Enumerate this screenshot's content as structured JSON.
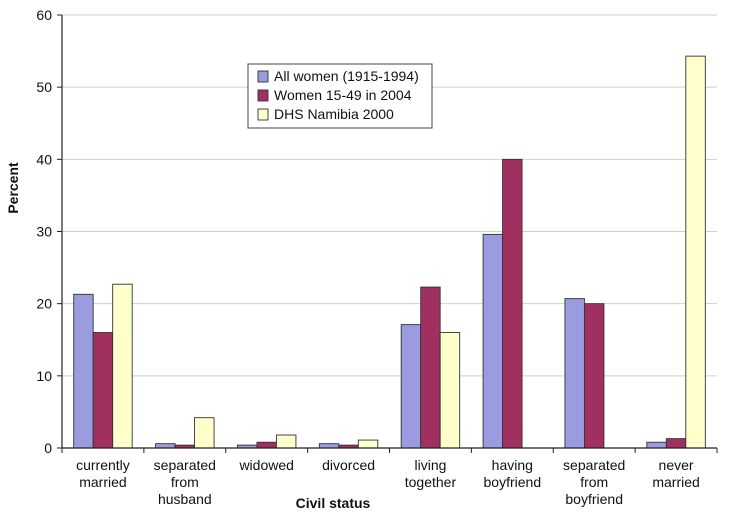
{
  "chart_data": {
    "type": "bar",
    "xlabel": "Civil status",
    "ylabel": "Percent",
    "ylim": [
      0,
      60
    ],
    "yticks": [
      0,
      10,
      20,
      30,
      40,
      50,
      60
    ],
    "grid": true,
    "legend_position": "top-center",
    "categories": [
      [
        "currently",
        "married"
      ],
      [
        "separated",
        "from",
        "husband"
      ],
      [
        "widowed"
      ],
      [
        "divorced"
      ],
      [
        "living",
        "together"
      ],
      [
        "having",
        "boyfriend"
      ],
      [
        "separated",
        "from",
        "boyfriend"
      ],
      [
        "never",
        "married"
      ]
    ],
    "series": [
      {
        "name": "All women (1915-1994)",
        "color": "#9b9be0",
        "values": [
          21.3,
          0.6,
          0.4,
          0.6,
          17.1,
          29.6,
          20.7,
          0.8
        ]
      },
      {
        "name": "Women 15-49 in 2004",
        "color": "#a0305f",
        "values": [
          16.0,
          0.4,
          0.8,
          0.4,
          22.3,
          40.0,
          20.0,
          1.3
        ]
      },
      {
        "name": "DHS Namibia 2000",
        "color": "#ffffcc",
        "values": [
          22.7,
          4.2,
          1.8,
          1.1,
          16.0,
          null,
          null,
          54.3
        ]
      }
    ]
  }
}
